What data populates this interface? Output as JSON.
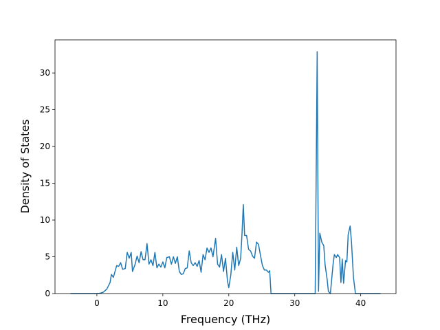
{
  "chart_data": {
    "type": "line",
    "xlabel": "Frequency (THz)",
    "ylabel": "Density of States",
    "xlim": [
      -6.35,
      45.35
    ],
    "ylim": [
      0,
      34.5
    ],
    "xticks": [
      0,
      10,
      20,
      30,
      40
    ],
    "yticks": [
      0,
      5,
      10,
      15,
      20,
      25,
      30
    ],
    "series": [
      {
        "color": "#1f77b4",
        "x": [
          -4,
          0,
          0.5,
          1,
          1.5,
          2,
          2.2,
          2.5,
          3,
          3.3,
          3.6,
          3.9,
          4.3,
          4.6,
          4.9,
          5.2,
          5.4,
          5.8,
          6.1,
          6.4,
          6.7,
          7,
          7.3,
          7.6,
          7.9,
          8.2,
          8.5,
          8.8,
          9.1,
          9.4,
          9.7,
          10,
          10.3,
          10.6,
          11,
          11.3,
          11.6,
          11.9,
          12.2,
          12.5,
          12.8,
          13.1,
          13.4,
          13.7,
          14,
          14.3,
          14.6,
          14.9,
          15.2,
          15.5,
          15.8,
          16.1,
          16.4,
          16.7,
          17,
          17.3,
          17.6,
          18,
          18.3,
          18.6,
          18.9,
          19.2,
          19.5,
          19.8,
          20,
          20.3,
          20.6,
          20.9,
          21.2,
          21.5,
          21.8,
          22,
          22.2,
          22.4,
          22.7,
          23,
          23.3,
          23.6,
          23.9,
          24.2,
          24.5,
          24.8,
          25.1,
          25.4,
          25.7,
          26,
          26.2,
          26.4,
          33.1,
          33.4,
          33.6,
          33.8,
          34.1,
          34.4,
          34.6,
          34.9,
          35.1,
          35.4,
          35.8,
          36,
          36.3,
          36.5,
          36.8,
          37,
          37.2,
          37.4,
          37.7,
          37.9,
          38.1,
          38.4,
          38.6,
          38.9,
          39.2,
          43
        ],
        "values": [
          0,
          0,
          0.05,
          0.2,
          0.6,
          1.5,
          2.6,
          2.2,
          3.8,
          3.7,
          4.2,
          3.3,
          3.4,
          5.6,
          4.8,
          5.6,
          3.0,
          4.0,
          5.1,
          4.2,
          5.7,
          4.6,
          4.6,
          6.8,
          4.0,
          4.6,
          3.8,
          5.6,
          3.5,
          4.0,
          3.6,
          4.3,
          3.5,
          4.9,
          5.0,
          4.0,
          5.0,
          4.1,
          5.0,
          3.0,
          2.6,
          2.7,
          3.4,
          3.5,
          5.8,
          4.2,
          3.8,
          4.2,
          3.7,
          4.5,
          2.9,
          5.3,
          4.6,
          6.2,
          5.6,
          6.2,
          5.0,
          7.5,
          4.0,
          3.6,
          5.3,
          3.0,
          4.8,
          1.7,
          0.8,
          2.5,
          5.6,
          3.2,
          6.3,
          3.8,
          4.8,
          8.1,
          12.1,
          7.9,
          7.9,
          6.0,
          5.8,
          5.1,
          4.8,
          7.0,
          6.7,
          5.2,
          3.8,
          3.2,
          3.2,
          2.9,
          3.1,
          0,
          0,
          32.9,
          0.3,
          8.2,
          7.0,
          6.5,
          3.9,
          2.0,
          0.3,
          0,
          3.9,
          5.3,
          4.9,
          5.3,
          4.9,
          1.5,
          4.7,
          1.4,
          4.5,
          4.3,
          8.0,
          9.2,
          7.0,
          2.2,
          0,
          0
        ]
      }
    ]
  }
}
